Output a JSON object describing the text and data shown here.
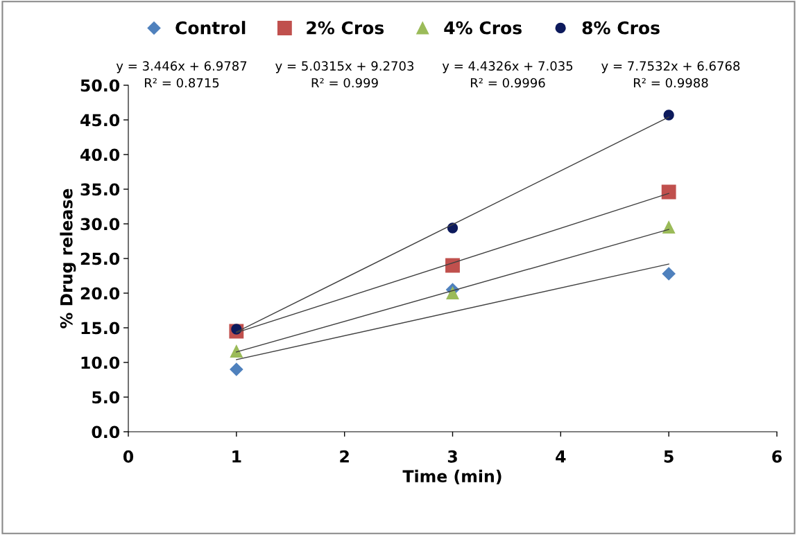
{
  "chart_data": {
    "type": "scatter",
    "xlabel": "Time (min)",
    "ylabel": "% Drug release",
    "xlim": [
      0,
      6
    ],
    "xticks": [
      0,
      1,
      2,
      3,
      4,
      5,
      6
    ],
    "ylim": [
      0,
      50
    ],
    "yticks": [
      {
        "value": 0,
        "label": "0.0"
      },
      {
        "value": 5,
        "label": "5.0"
      },
      {
        "value": 10,
        "label": "10.0"
      },
      {
        "value": 15,
        "label": "15.0"
      },
      {
        "value": 20,
        "label": "20.0"
      },
      {
        "value": 25,
        "label": "25.0"
      },
      {
        "value": 30,
        "label": "30.0"
      },
      {
        "value": 35,
        "label": "35.0"
      },
      {
        "value": 40,
        "label": "40.0"
      },
      {
        "value": 45,
        "label": "45.0"
      },
      {
        "value": 50,
        "label": "50.0"
      }
    ],
    "grid": false,
    "legend": "top",
    "series": [
      {
        "name": "Control",
        "color": "#4f81bd",
        "marker": "diamond",
        "x": [
          1,
          3,
          5
        ],
        "values": [
          9.0,
          20.5,
          22.8
        ]
      },
      {
        "name": "2% Cros",
        "color": "#c0504d",
        "marker": "square",
        "x": [
          1,
          3,
          5
        ],
        "values": [
          14.5,
          24.0,
          34.6
        ]
      },
      {
        "name": "4% Cros",
        "color": "#9bbb59",
        "marker": "triangle",
        "x": [
          1,
          3,
          5
        ],
        "values": [
          11.6,
          20.0,
          29.5
        ]
      },
      {
        "name": "8% Cros",
        "color": "#0d1a5c",
        "marker": "circle",
        "x": [
          1,
          3,
          5
        ],
        "values": [
          14.8,
          29.4,
          45.7
        ]
      },
      {
        "type": "line",
        "color": "#404040",
        "marker": "none",
        "x": [
          1,
          5
        ],
        "values": [
          10.4,
          24.2
        ]
      },
      {
        "type": "line",
        "color": "#404040",
        "marker": "none",
        "x": [
          1,
          5
        ],
        "values": [
          14.3,
          34.4
        ]
      },
      {
        "type": "line",
        "color": "#404040",
        "marker": "none",
        "x": [
          1,
          5
        ],
        "values": [
          11.5,
          29.2
        ]
      },
      {
        "type": "line",
        "color": "#404040",
        "marker": "none",
        "x": [
          1,
          5
        ],
        "values": [
          14.4,
          45.4
        ]
      }
    ],
    "annotations": [
      "y = 3.446x + 6.9787\nR² = 0.8715",
      "y = 5.0315x + 9.2703\nR² = 0.999",
      "y = 4.4326x + 7.035\nR² = 0.9996",
      "y = 7.7532x + 6.6768\nR² = 0.9988"
    ]
  }
}
